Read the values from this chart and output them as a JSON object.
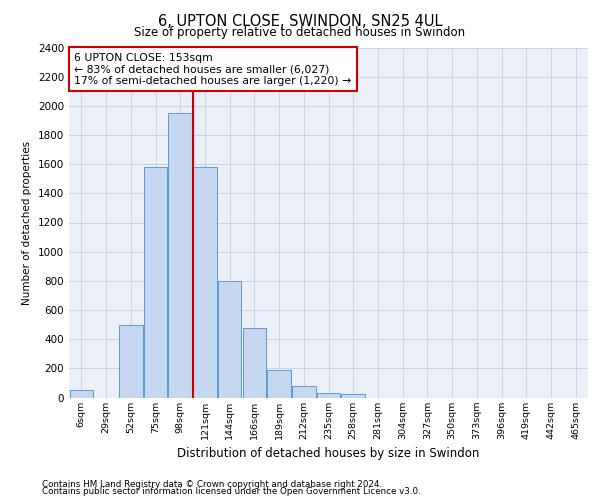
{
  "title": "6, UPTON CLOSE, SWINDON, SN25 4UL",
  "subtitle": "Size of property relative to detached houses in Swindon",
  "xlabel": "Distribution of detached houses by size in Swindon",
  "ylabel": "Number of detached properties",
  "categories": [
    "6sqm",
    "29sqm",
    "52sqm",
    "75sqm",
    "98sqm",
    "121sqm",
    "144sqm",
    "166sqm",
    "189sqm",
    "212sqm",
    "235sqm",
    "258sqm",
    "281sqm",
    "304sqm",
    "327sqm",
    "350sqm",
    "373sqm",
    "396sqm",
    "419sqm",
    "442sqm",
    "465sqm"
  ],
  "values": [
    50,
    0,
    500,
    1580,
    1950,
    1580,
    800,
    480,
    190,
    80,
    30,
    25,
    0,
    0,
    0,
    0,
    0,
    0,
    0,
    0,
    0
  ],
  "bar_color": "#c5d8f0",
  "bar_edge_color": "#5b9bd5",
  "vline_x": 4.5,
  "vline_color": "#cc0000",
  "annotation_text": "6 UPTON CLOSE: 153sqm\n← 83% of detached houses are smaller (6,027)\n17% of semi-detached houses are larger (1,220) →",
  "annotation_box_color": "#ffffff",
  "annotation_box_edge": "#cc0000",
  "ylim": [
    0,
    2400
  ],
  "yticks": [
    0,
    200,
    400,
    600,
    800,
    1000,
    1200,
    1400,
    1600,
    1800,
    2000,
    2200,
    2400
  ],
  "grid_color": "#c8d4e8",
  "background_color": "#eaeff8",
  "footer_line1": "Contains HM Land Registry data © Crown copyright and database right 2024.",
  "footer_line2": "Contains public sector information licensed under the Open Government Licence v3.0."
}
